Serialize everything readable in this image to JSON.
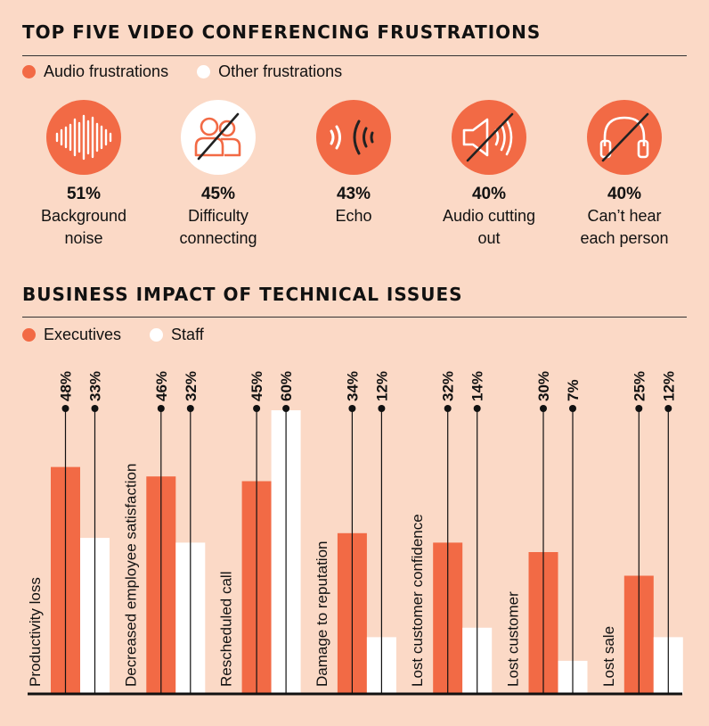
{
  "top": {
    "title": "TOP FIVE VIDEO CONFERENCING FRUSTRATIONS",
    "legend": [
      {
        "label": "Audio frustrations",
        "color": "#f26a45"
      },
      {
        "label": "Other frustrations",
        "color": "#ffffff"
      }
    ],
    "items": [
      {
        "pct": "51%",
        "label": "Background\nnoise",
        "icon": "sound-wave-icon",
        "kind": "audio"
      },
      {
        "pct": "45%",
        "label": "Difficulty\nconnecting",
        "icon": "people-crossed-icon",
        "kind": "other"
      },
      {
        "pct": "43%",
        "label": "Echo",
        "icon": "echo-icon",
        "kind": "audio"
      },
      {
        "pct": "40%",
        "label": "Audio cutting\nout",
        "icon": "speaker-muted-icon",
        "kind": "audio"
      },
      {
        "pct": "40%",
        "label": "Can’t hear\neach person",
        "icon": "headphones-crossed-icon",
        "kind": "audio"
      }
    ]
  },
  "bottom": {
    "title": "BUSINESS IMPACT OF TECHNICAL ISSUES",
    "legend": [
      {
        "label": "Executives",
        "color": "#f26a45"
      },
      {
        "label": "Staff",
        "color": "#ffffff"
      }
    ]
  },
  "chart_data": {
    "type": "bar",
    "categories": [
      "Productivity loss",
      "Decreased employee satisfaction",
      "Rescheduled call",
      "Damage to reputation",
      "Lost customer confidence",
      "Lost customer",
      "Lost sale"
    ],
    "series": [
      {
        "name": "Executives",
        "values": [
          48,
          46,
          45,
          34,
          32,
          30,
          25
        ],
        "labels": [
          "48%",
          "46%",
          "45%",
          "34%",
          "32%",
          "30%",
          "25%"
        ]
      },
      {
        "name": "Staff",
        "values": [
          33,
          32,
          60,
          12,
          14,
          7,
          12
        ],
        "labels": [
          "33%",
          "32%",
          "60%",
          "12%",
          "14%",
          "7%",
          "12%"
        ]
      }
    ],
    "ylim": [
      0,
      60
    ],
    "colors": {
      "Executives": "#f26a45",
      "Staff": "#ffffff"
    }
  }
}
